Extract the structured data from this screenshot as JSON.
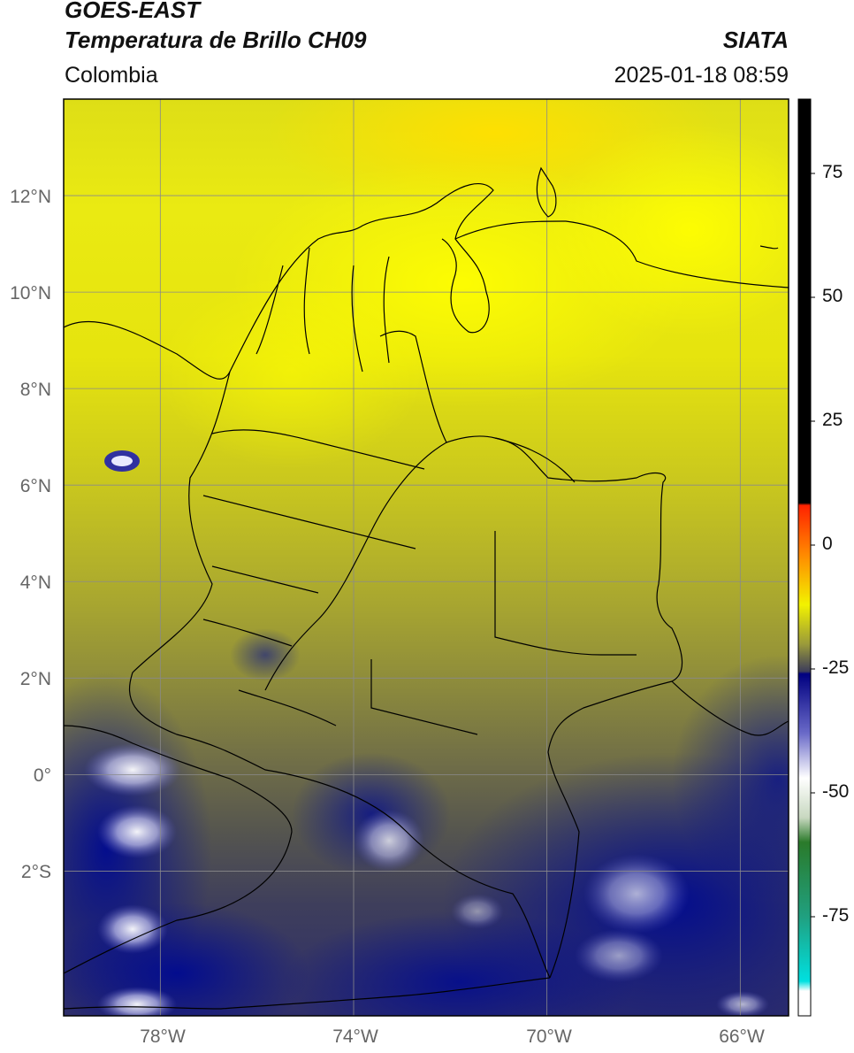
{
  "header": {
    "title_line1": "GOES-EAST",
    "title_line2": "Temperatura de Brillo CH09",
    "brand": "SIATA",
    "region": "Colombia",
    "timestamp": "2025-01-18 08:59"
  },
  "map": {
    "lat_labels": [
      "12°N",
      "10°N",
      "8°N",
      "6°N",
      "4°N",
      "2°N",
      "0°",
      "2°S"
    ],
    "lon_labels": [
      "78°W",
      "74°W",
      "70°W",
      "66°W"
    ],
    "extent": {
      "lon_min": -80,
      "lon_max": -65,
      "lat_min": -5,
      "lat_max": 14
    }
  },
  "colorbar": {
    "tick_labels": [
      "75",
      "50",
      "25",
      "0",
      "-25",
      "-50",
      "-75"
    ],
    "tick_values": [
      75,
      50,
      25,
      0,
      -25,
      -50,
      -75
    ],
    "range": [
      -95,
      90
    ],
    "stops": [
      {
        "v": 90,
        "c": "#000000"
      },
      {
        "v": 8.5,
        "c": "#000000"
      },
      {
        "v": 8,
        "c": "#ff2200"
      },
      {
        "v": -2,
        "c": "#ff8a00"
      },
      {
        "v": -12,
        "c": "#f2f200"
      },
      {
        "v": -20,
        "c": "#9a9a3a"
      },
      {
        "v": -25.5,
        "c": "#3d3d5a"
      },
      {
        "v": -26,
        "c": "#000080"
      },
      {
        "v": -38,
        "c": "#6a6ac8"
      },
      {
        "v": -47,
        "c": "#ffffff"
      },
      {
        "v": -55,
        "c": "#c8d8c0"
      },
      {
        "v": -60,
        "c": "#2a7a2a"
      },
      {
        "v": -75,
        "c": "#20a080"
      },
      {
        "v": -88,
        "c": "#00e0e0"
      },
      {
        "v": -90,
        "c": "#ffffff"
      },
      {
        "v": -95,
        "c": "#ffffff"
      }
    ]
  }
}
